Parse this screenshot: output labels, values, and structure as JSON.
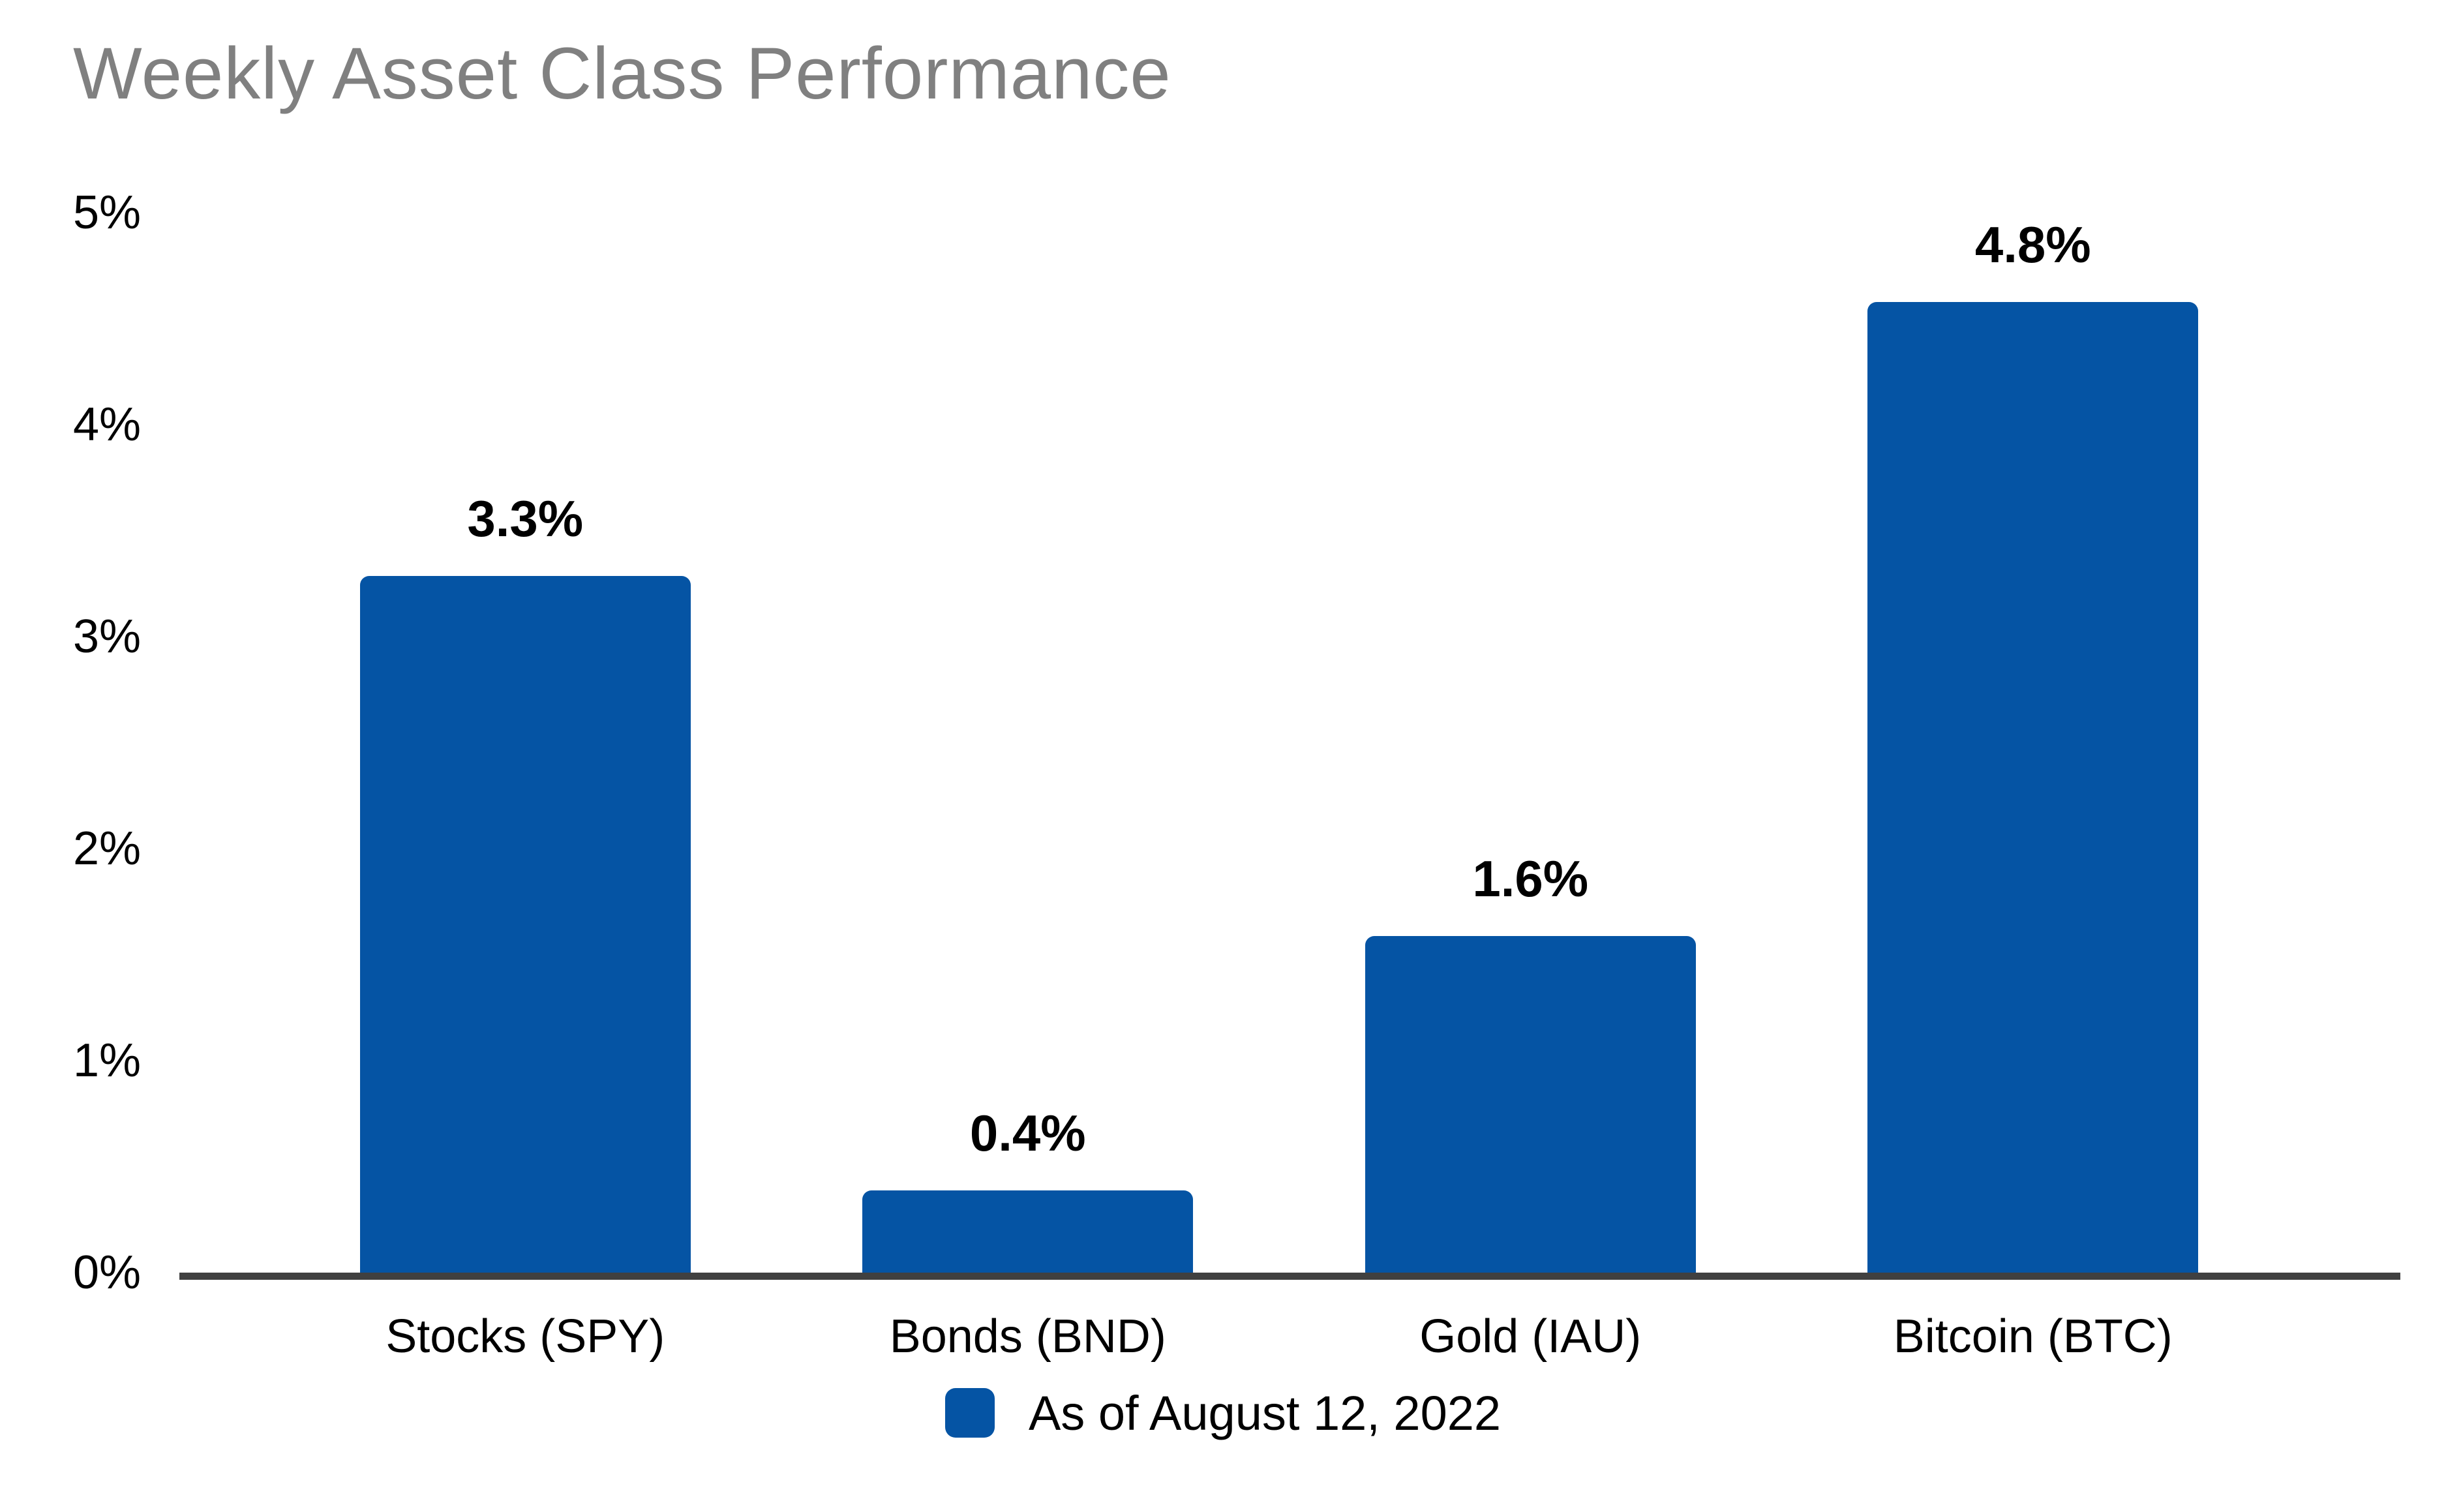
{
  "title": "Weekly Asset Class Performance",
  "colors": {
    "bar": "#0554A4",
    "title_text": "#808080",
    "axis_line": "#404040",
    "label_text": "#000000",
    "background": "#FFFFFF"
  },
  "legend": {
    "label": "As of August 12, 2022",
    "marker_icon": "blue-square-icon",
    "marker_color": "#0554A4"
  },
  "y_axis": {
    "tick_labels": [
      "0%",
      "1%",
      "2%",
      "3%",
      "4%",
      "5%"
    ]
  },
  "chart_data": {
    "type": "bar",
    "title": "Weekly Asset Class Performance",
    "categories": [
      "Stocks (SPY)",
      "Bonds (BND)",
      "Gold (IAU)",
      "Bitcoin (BTC)"
    ],
    "values": [
      3.3,
      0.4,
      1.6,
      4.8
    ],
    "value_labels": [
      "3.3%",
      "0.4%",
      "1.6%",
      "4.8%"
    ],
    "series": [
      {
        "name": "As of August 12, 2022",
        "values": [
          3.3,
          0.4,
          1.6,
          4.8
        ]
      }
    ],
    "xlabel": "",
    "ylabel": "",
    "ylim": [
      0,
      5
    ],
    "y_ticks": [
      0,
      1,
      2,
      3,
      4,
      5
    ],
    "y_tick_format": "percent",
    "grid": false,
    "legend_position": "bottom-center",
    "bar_color": "#0554A4"
  }
}
